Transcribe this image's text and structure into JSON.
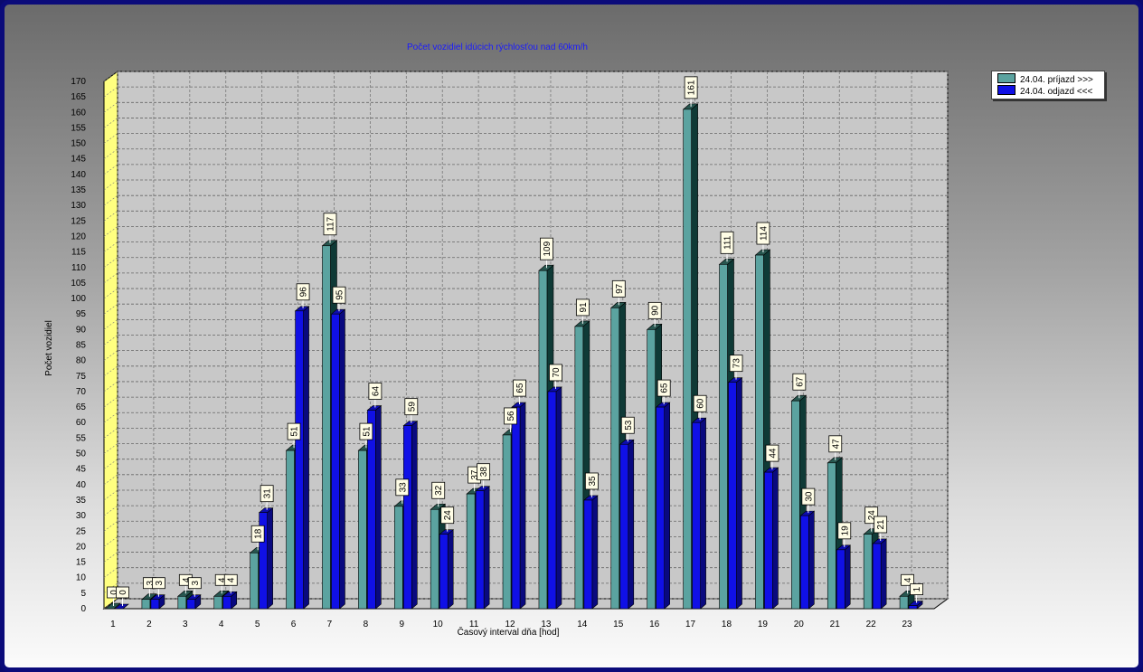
{
  "chart_data": {
    "type": "bar",
    "title": "Počet vozidiel idúcich rýchlosťou nad 60km/h",
    "xlabel": "Časový interval dňa [hod]",
    "ylabel": "Počet vozidiel",
    "categories": [
      "1",
      "2",
      "3",
      "4",
      "5",
      "6",
      "7",
      "8",
      "9",
      "10",
      "11",
      "12",
      "13",
      "14",
      "15",
      "16",
      "17",
      "18",
      "19",
      "20",
      "21",
      "22",
      "23"
    ],
    "ylim": [
      0,
      170
    ],
    "ytick_step": 5,
    "grid": true,
    "legend_position": "top-right",
    "series": [
      {
        "name": "24.04.  príjazd >>>",
        "color": "#5ba3a0",
        "values": [
          0,
          3,
          4,
          4,
          18,
          51,
          117,
          51,
          33,
          32,
          37,
          56,
          109,
          91,
          97,
          90,
          161,
          111,
          114,
          67,
          47,
          24,
          4
        ]
      },
      {
        "name": "24.04.  odjazd <<<",
        "color": "#1010e6",
        "values": [
          0,
          3,
          3,
          4,
          31,
          96,
          95,
          64,
          59,
          24,
          38,
          65,
          70,
          35,
          53,
          65,
          60,
          73,
          44,
          30,
          19,
          21,
          1
        ]
      }
    ]
  }
}
